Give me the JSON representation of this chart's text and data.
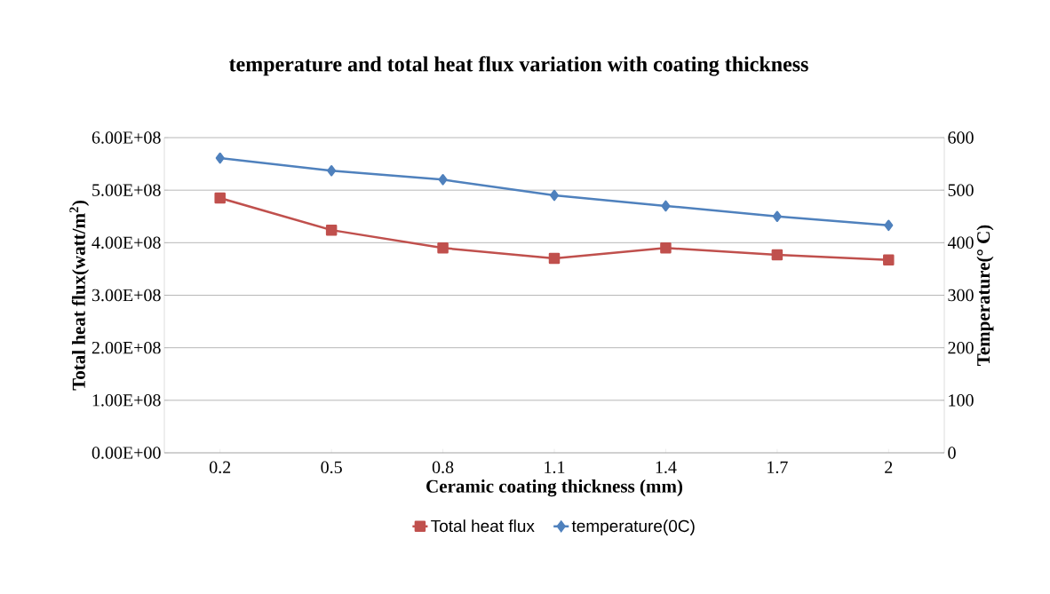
{
  "chart_data": {
    "type": "line",
    "title": "temperature and total heat flux variation with coating thickness",
    "xlabel": "Ceramic  coating thickness (mm)",
    "ylabel": "Total  heat flux(watt/m$^{2}$)",
    "y2label": "Temperature(° C)",
    "categories": [
      "0.2",
      "0.5",
      "0.8",
      "1.1",
      "1.4",
      "1.7",
      "2"
    ],
    "series": [
      {
        "name": "Total heat flux",
        "color": "#c0504d",
        "marker": "square",
        "values": [
          485000000,
          424000000,
          390000000,
          370000000,
          390000000,
          377000000,
          367000000
        ]
      },
      {
        "name": "temperature(0C)",
        "color": "#4f81bd",
        "marker": "diamond",
        "axis": "y2",
        "values": [
          561,
          537,
          520,
          490,
          470,
          450,
          433
        ]
      }
    ],
    "ylim": [
      0,
      600000000
    ],
    "yticks": [
      {
        "value": 0,
        "label": "0.00E+00"
      },
      {
        "value": 100000000,
        "label": "1.00E+08"
      },
      {
        "value": 200000000,
        "label": "2.00E+08"
      },
      {
        "value": 300000000,
        "label": "3.00E+08"
      },
      {
        "value": 400000000,
        "label": "4.00E+08"
      },
      {
        "value": 500000000,
        "label": "5.00E+08"
      },
      {
        "value": 600000000,
        "label": "6.00E+08"
      }
    ],
    "y2lim": [
      0,
      600
    ],
    "y2ticks": [
      0,
      100,
      200,
      300,
      400,
      500,
      600
    ],
    "grid": "y",
    "legend": "bottom"
  }
}
